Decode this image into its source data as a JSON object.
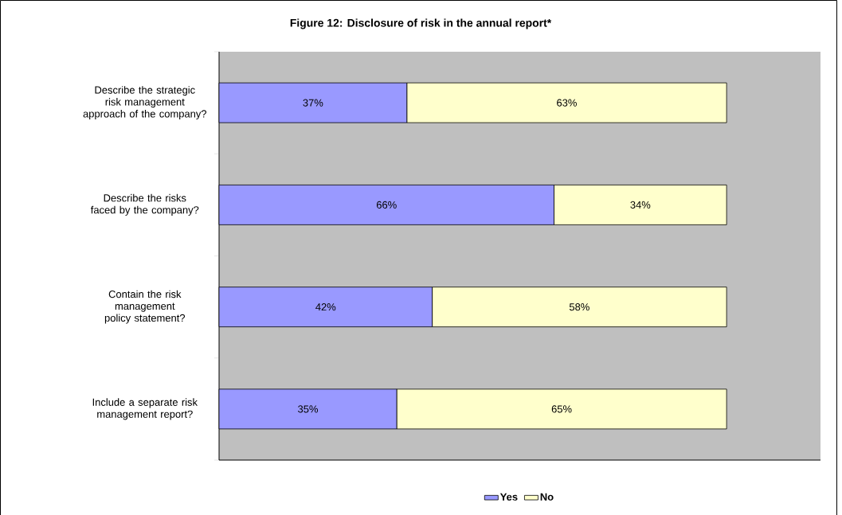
{
  "chart_data": {
    "type": "bar",
    "orientation": "horizontal",
    "stacked": true,
    "title": "Figure 12: Disclosure of risk in the annual report*",
    "categories": [
      "Describe the strategic risk management approach of the company?",
      "Describe the risks faced by the company?",
      "Contain the risk management policy statement?",
      "Include a separate risk management report?"
    ],
    "series": [
      {
        "name": "Yes",
        "color": "#9999ff",
        "values": [
          37,
          66,
          42,
          35
        ],
        "value_labels": [
          "37%",
          "66%",
          "42%",
          "35%"
        ]
      },
      {
        "name": "No",
        "color": "#ffffcc",
        "values": [
          63,
          34,
          58,
          65
        ],
        "value_labels": [
          "63%",
          "34%",
          "58%",
          "65%"
        ]
      }
    ],
    "legend": "bottom",
    "grid": false
  }
}
